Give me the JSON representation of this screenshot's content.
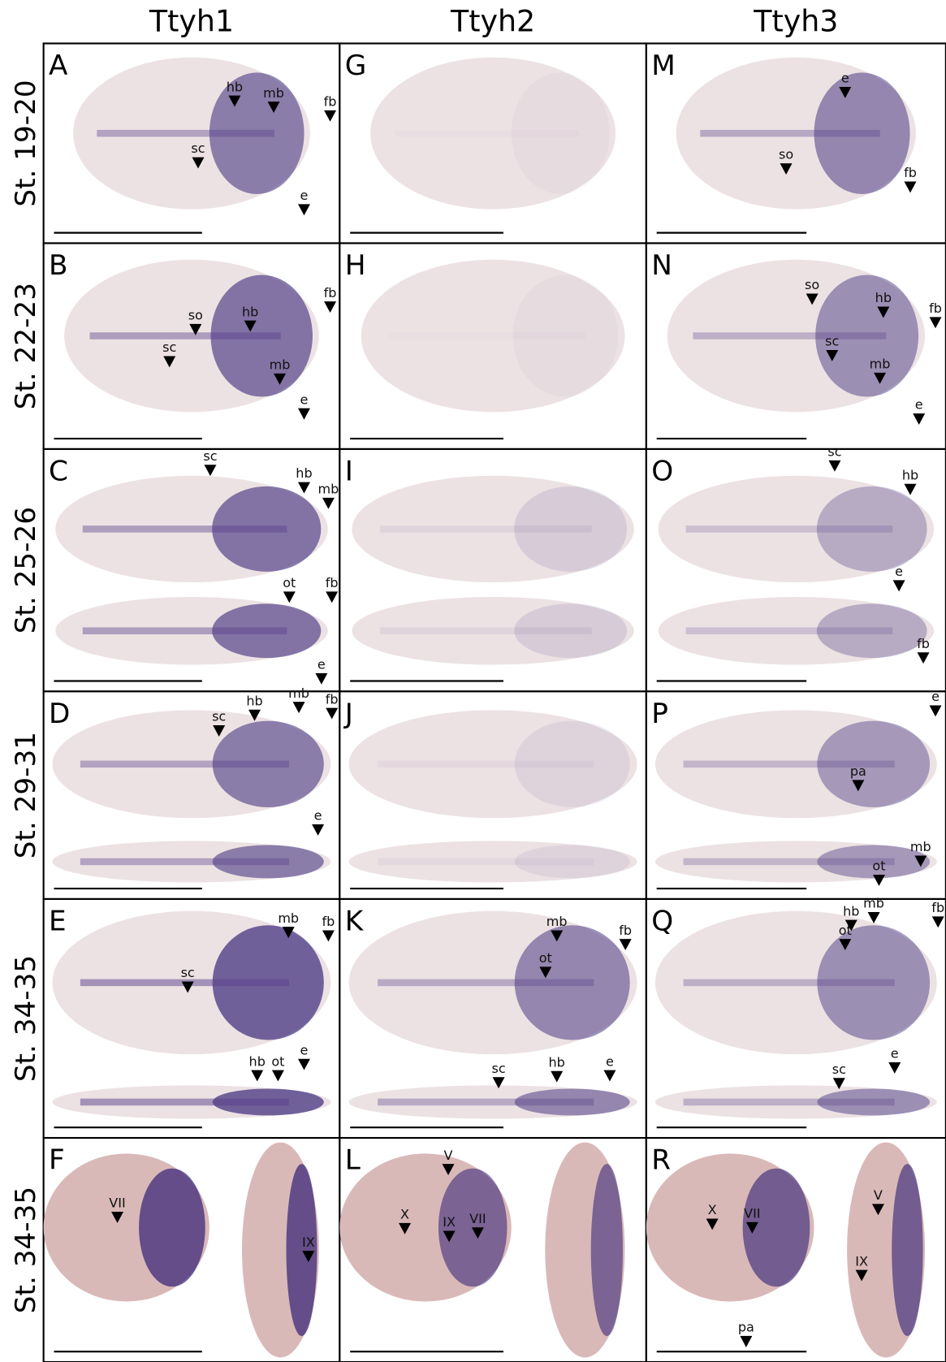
{
  "columns": [
    "Ttyh1",
    "Ttyh2",
    "Ttyh3"
  ],
  "rows": [
    "St. 19-20",
    "St. 22-23",
    "St. 25-26",
    "St. 29-31",
    "St. 34-35",
    "St. 34-35"
  ],
  "panels": [
    {
      "letter": "A",
      "labels": [
        "hb",
        "mb",
        "fb",
        "sc",
        "e"
      ]
    },
    {
      "letter": "B",
      "labels": [
        "so",
        "hb",
        "fb",
        "sc",
        "mb",
        "e"
      ]
    },
    {
      "letter": "C",
      "labels": [
        "sc",
        "hb",
        "mb",
        "ot",
        "fb",
        "e"
      ]
    },
    {
      "letter": "D",
      "labels": [
        "sc",
        "hb",
        "mb",
        "fb",
        "e"
      ]
    },
    {
      "letter": "E",
      "labels": [
        "mb",
        "fb",
        "sc",
        "hb",
        "ot",
        "e"
      ]
    },
    {
      "letter": "F",
      "labels": [
        "VII",
        "IX"
      ]
    },
    {
      "letter": "G",
      "labels": []
    },
    {
      "letter": "H",
      "labels": []
    },
    {
      "letter": "I",
      "labels": []
    },
    {
      "letter": "J",
      "labels": []
    },
    {
      "letter": "K",
      "labels": [
        "mb",
        "fb",
        "ot",
        "sc",
        "hb",
        "e"
      ]
    },
    {
      "letter": "L",
      "labels": [
        "V",
        "X",
        "IX",
        "VII"
      ]
    },
    {
      "letter": "M",
      "labels": [
        "e",
        "so",
        "fb"
      ]
    },
    {
      "letter": "N",
      "labels": [
        "so",
        "hb",
        "fb",
        "sc",
        "mb",
        "e"
      ]
    },
    {
      "letter": "O",
      "labels": [
        "sc",
        "hb",
        "e",
        "fb"
      ]
    },
    {
      "letter": "P",
      "labels": [
        "e",
        "pa",
        "mb",
        "ot"
      ]
    },
    {
      "letter": "Q",
      "labels": [
        "hb",
        "mb",
        "fb",
        "ot",
        "e",
        "sc"
      ]
    },
    {
      "letter": "R",
      "labels": [
        "V",
        "X",
        "VII",
        "IX",
        "pa"
      ]
    }
  ]
}
